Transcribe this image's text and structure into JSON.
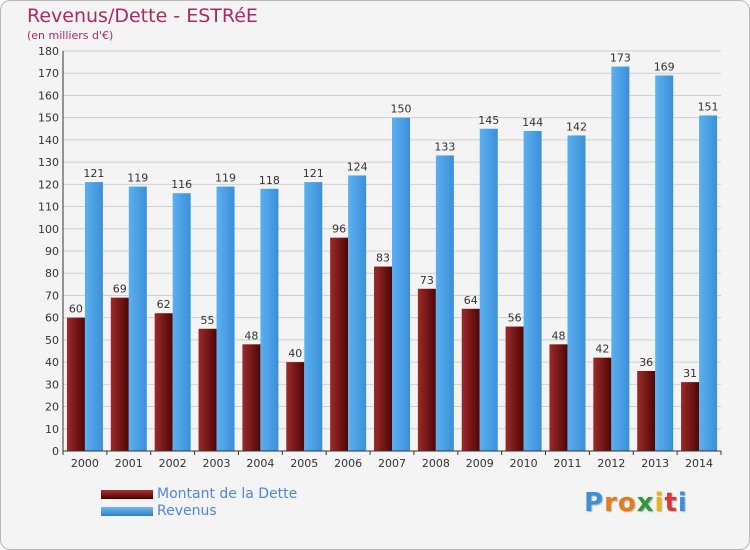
{
  "chart_data": {
    "type": "bar",
    "title": "Revenus/Dette - ESTRéE",
    "subtitle": "(en milliers d'€)",
    "categories": [
      "2000",
      "2001",
      "2002",
      "2003",
      "2004",
      "2005",
      "2006",
      "2007",
      "2008",
      "2009",
      "2010",
      "2011",
      "2012",
      "2013",
      "2014"
    ],
    "series": [
      {
        "name": "Montant de la Dette",
        "color": "#8b1a1a",
        "values": [
          60,
          69,
          62,
          55,
          48,
          40,
          96,
          83,
          73,
          64,
          56,
          48,
          42,
          36,
          31
        ]
      },
      {
        "name": "Revenus",
        "color": "#4fa2e6",
        "values": [
          121,
          119,
          116,
          119,
          118,
          121,
          124,
          150,
          133,
          145,
          144,
          142,
          173,
          169,
          151
        ]
      }
    ],
    "ylim": [
      0,
      180
    ],
    "y_ticks": [
      0,
      10,
      20,
      30,
      40,
      50,
      60,
      70,
      80,
      90,
      100,
      110,
      120,
      130,
      140,
      150,
      160,
      170,
      180
    ],
    "grid": true,
    "legend_position": "bottom-left",
    "xlabel": "",
    "ylabel": ""
  },
  "branding": {
    "logo_letters": [
      "P",
      "r",
      "o",
      "x",
      "i",
      "t",
      "i"
    ],
    "logo_colors": [
      "#3f8fd6",
      "#e27d1e",
      "#e27d1e",
      "#2e9b3a",
      "#e5b51b",
      "#d43a3a",
      "#3f8fd6"
    ]
  }
}
